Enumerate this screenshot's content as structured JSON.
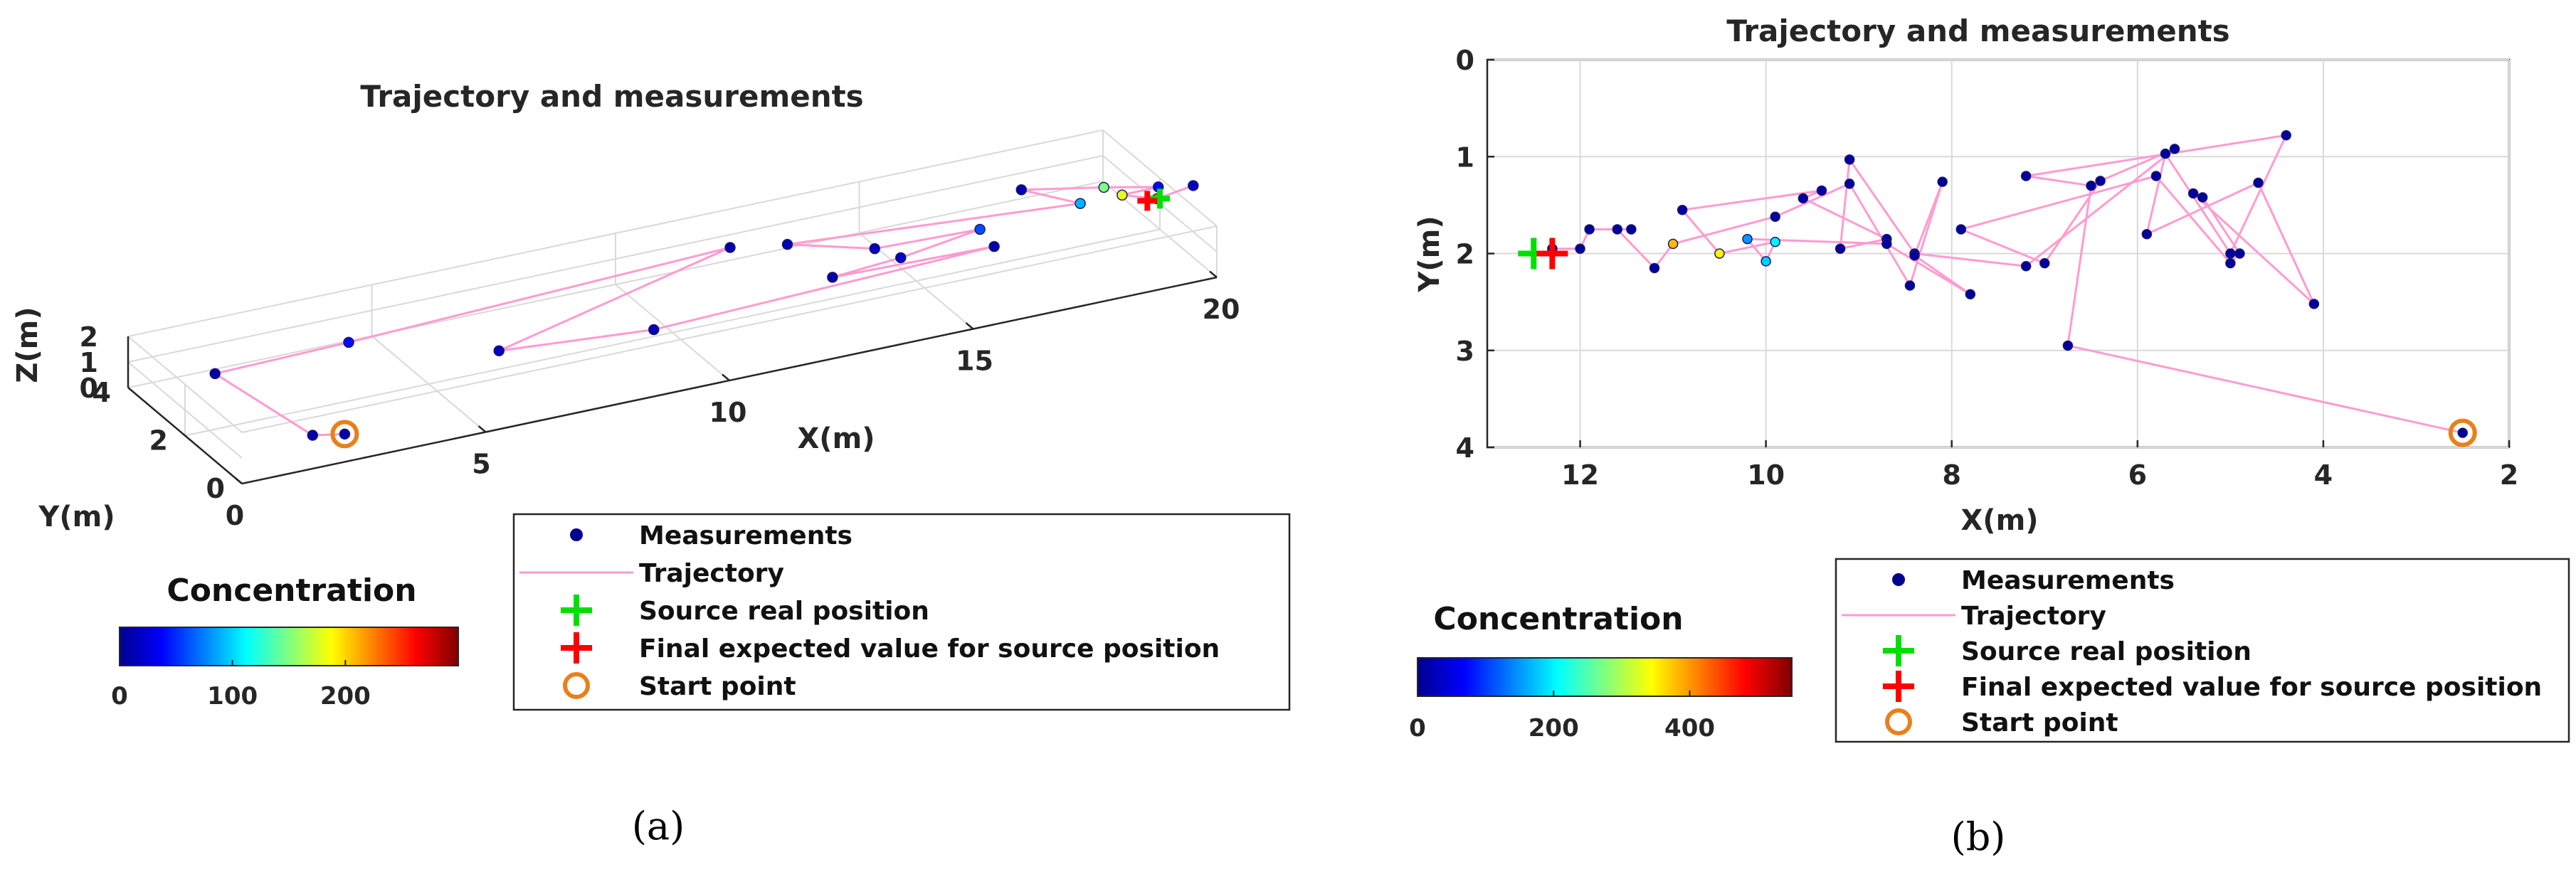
{
  "chart_data": [
    {
      "panel": "a",
      "caption": "(a)",
      "type": "scatter3d",
      "title": "Trajectory and measurements",
      "xlabel": "X(m)",
      "ylabel": "Y(m)",
      "zlabel": "Z(m)",
      "xlim": [
        0,
        20
      ],
      "ylim": [
        0,
        4
      ],
      "zlim": [
        0,
        2
      ],
      "xticks": [
        0,
        5,
        10,
        15,
        20
      ],
      "yticks": [
        0,
        2,
        4
      ],
      "zticks": [
        0,
        1,
        2
      ],
      "trajectory": [
        [
          2.4,
          0.5,
          0.5
        ],
        [
          1.8,
          0.6,
          0.6
        ],
        [
          1.2,
          3.0,
          1.0
        ],
        [
          4.0,
          3.1,
          1.0
        ],
        [
          12.0,
          3.4,
          1.2
        ],
        [
          6.5,
          2.1,
          0.6
        ],
        [
          9.5,
          1.8,
          0.5
        ],
        [
          16.6,
          2.0,
          0.7
        ],
        [
          13.4,
          2.2,
          0.6
        ],
        [
          14.8,
          2.2,
          0.8
        ],
        [
          16.6,
          2.5,
          0.9
        ],
        [
          14.5,
          2.6,
          0.9
        ],
        [
          13.0,
          3.1,
          1.2
        ],
        [
          18.6,
          2.4,
          1.2
        ],
        [
          17.8,
          3.1,
          1.4
        ],
        [
          19.2,
          2.6,
          1.4
        ],
        [
          20.2,
          2.4,
          1.2
        ],
        [
          19.4,
          2.3,
          1.3
        ],
        [
          20.0,
          2.1,
          1.1
        ],
        [
          20.8,
          2.2,
          1.2
        ]
      ],
      "measurements": [
        {
          "x": 2.4,
          "y": 0.5,
          "z": 0.5,
          "c": 10
        },
        {
          "x": 1.8,
          "y": 0.6,
          "z": 0.6,
          "c": 10
        },
        {
          "x": 1.2,
          "y": 3.0,
          "z": 1.0,
          "c": 10
        },
        {
          "x": 4.0,
          "y": 3.1,
          "z": 1.0,
          "c": 40
        },
        {
          "x": 12.0,
          "y": 3.4,
          "z": 1.2,
          "c": 10
        },
        {
          "x": 6.5,
          "y": 2.1,
          "z": 0.6,
          "c": 15
        },
        {
          "x": 9.5,
          "y": 1.8,
          "z": 0.5,
          "c": 12
        },
        {
          "x": 16.6,
          "y": 2.0,
          "z": 0.7,
          "c": 10
        },
        {
          "x": 13.4,
          "y": 2.2,
          "z": 0.6,
          "c": 10
        },
        {
          "x": 14.8,
          "y": 2.2,
          "z": 0.8,
          "c": 20
        },
        {
          "x": 16.6,
          "y": 2.5,
          "z": 0.9,
          "c": 60
        },
        {
          "x": 14.5,
          "y": 2.6,
          "z": 0.9,
          "c": 15
        },
        {
          "x": 13.0,
          "y": 3.1,
          "z": 1.2,
          "c": 12
        },
        {
          "x": 18.6,
          "y": 2.4,
          "z": 1.2,
          "c": 90
        },
        {
          "x": 17.8,
          "y": 3.1,
          "z": 1.4,
          "c": 10
        },
        {
          "x": 19.2,
          "y": 2.6,
          "z": 1.4,
          "c": 150
        },
        {
          "x": 20.2,
          "y": 2.4,
          "z": 1.2,
          "c": 40
        },
        {
          "x": 19.4,
          "y": 2.3,
          "z": 1.3,
          "c": 180
        },
        {
          "x": 20.0,
          "y": 2.1,
          "z": 1.1,
          "c": 230
        },
        {
          "x": 20.8,
          "y": 2.2,
          "z": 1.2,
          "c": 20
        }
      ],
      "source_real_position": [
        20.0,
        2.0,
        1.2
      ],
      "final_expected_source_position": [
        19.8,
        2.1,
        1.1
      ],
      "start_point": [
        2.4,
        0.5,
        0.5
      ],
      "colorbar": {
        "title": "Concentration",
        "ticks": [
          0,
          100,
          200
        ],
        "range": [
          0,
          300
        ]
      },
      "legend": [
        {
          "key": "measurements",
          "label": "Measurements"
        },
        {
          "key": "trajectory",
          "label": "Trajectory"
        },
        {
          "key": "source",
          "label": "Source real position"
        },
        {
          "key": "expected",
          "label": "Final expected value for source position"
        },
        {
          "key": "start",
          "label": "Start point"
        }
      ]
    },
    {
      "panel": "b",
      "caption": "(b)",
      "type": "scatter",
      "title": "Trajectory and measurements",
      "xlabel": "X(m)",
      "ylabel": "Y(m)",
      "xlim": [
        2,
        13
      ],
      "ylim": [
        0,
        4
      ],
      "x_reversed": true,
      "y_reversed": true,
      "xticks": [
        12,
        10,
        8,
        6,
        4,
        2
      ],
      "yticks": [
        0,
        1,
        2,
        3,
        4
      ],
      "trajectory": [
        [
          2.5,
          3.85
        ],
        [
          6.75,
          2.95
        ],
        [
          6.5,
          1.3
        ],
        [
          7.2,
          1.2
        ],
        [
          4.4,
          0.78
        ],
        [
          5.0,
          2.0
        ],
        [
          5.7,
          0.97
        ],
        [
          5.9,
          1.8
        ],
        [
          4.7,
          1.27
        ],
        [
          4.1,
          2.52
        ],
        [
          5.4,
          1.38
        ],
        [
          5.3,
          1.42
        ],
        [
          4.9,
          2.0
        ],
        [
          5.0,
          2.1
        ],
        [
          5.8,
          1.2
        ],
        [
          7.9,
          1.75
        ],
        [
          7.0,
          2.1
        ],
        [
          6.4,
          1.25
        ],
        [
          5.6,
          0.92
        ],
        [
          7.2,
          2.13
        ],
        [
          8.4,
          2.0
        ],
        [
          9.1,
          1.03
        ],
        [
          9.2,
          1.95
        ],
        [
          8.7,
          1.85
        ],
        [
          9.6,
          1.43
        ],
        [
          9.4,
          1.35
        ],
        [
          10.9,
          1.55
        ],
        [
          10.5,
          2.0
        ],
        [
          9.9,
          1.88
        ],
        [
          10.0,
          2.08
        ],
        [
          10.2,
          1.85
        ],
        [
          8.7,
          1.9
        ],
        [
          7.8,
          2.42
        ],
        [
          8.4,
          2.02
        ],
        [
          8.1,
          1.26
        ],
        [
          8.45,
          2.33
        ],
        [
          9.1,
          1.28
        ],
        [
          9.9,
          1.62
        ],
        [
          11.0,
          1.9
        ],
        [
          11.2,
          2.15
        ],
        [
          11.6,
          1.75
        ],
        [
          11.45,
          1.75
        ],
        [
          11.9,
          1.75
        ],
        [
          12.0,
          1.95
        ],
        [
          12.3,
          1.95
        ]
      ],
      "measurements": [
        {
          "x": 2.5,
          "y": 3.85,
          "c": 10
        },
        {
          "x": 6.75,
          "y": 2.95,
          "c": 10
        },
        {
          "x": 6.5,
          "y": 1.3,
          "c": 10
        },
        {
          "x": 7.2,
          "y": 1.2,
          "c": 10
        },
        {
          "x": 4.4,
          "y": 0.78,
          "c": 10
        },
        {
          "x": 5.0,
          "y": 2.0,
          "c": 10
        },
        {
          "x": 5.7,
          "y": 0.97,
          "c": 10
        },
        {
          "x": 5.9,
          "y": 1.8,
          "c": 10
        },
        {
          "x": 4.7,
          "y": 1.27,
          "c": 10
        },
        {
          "x": 4.1,
          "y": 2.52,
          "c": 10
        },
        {
          "x": 5.4,
          "y": 1.38,
          "c": 10
        },
        {
          "x": 5.3,
          "y": 1.42,
          "c": 10
        },
        {
          "x": 4.9,
          "y": 2.0,
          "c": 10
        },
        {
          "x": 5.0,
          "y": 2.1,
          "c": 10
        },
        {
          "x": 5.8,
          "y": 1.2,
          "c": 10
        },
        {
          "x": 7.9,
          "y": 1.75,
          "c": 10
        },
        {
          "x": 7.0,
          "y": 2.1,
          "c": 10
        },
        {
          "x": 6.4,
          "y": 1.25,
          "c": 10
        },
        {
          "x": 5.6,
          "y": 0.92,
          "c": 10
        },
        {
          "x": 7.2,
          "y": 2.13,
          "c": 10
        },
        {
          "x": 8.4,
          "y": 2.0,
          "c": 10
        },
        {
          "x": 9.1,
          "y": 1.03,
          "c": 10
        },
        {
          "x": 9.2,
          "y": 1.95,
          "c": 10
        },
        {
          "x": 8.7,
          "y": 1.85,
          "c": 10
        },
        {
          "x": 9.6,
          "y": 1.43,
          "c": 10
        },
        {
          "x": 9.4,
          "y": 1.35,
          "c": 10
        },
        {
          "x": 10.9,
          "y": 1.55,
          "c": 10
        },
        {
          "x": 10.5,
          "y": 2.0,
          "c": 350
        },
        {
          "x": 9.9,
          "y": 1.88,
          "c": 200
        },
        {
          "x": 10.0,
          "y": 2.08,
          "c": 180
        },
        {
          "x": 10.2,
          "y": 1.85,
          "c": 150
        },
        {
          "x": 8.7,
          "y": 1.9,
          "c": 10
        },
        {
          "x": 7.8,
          "y": 2.42,
          "c": 10
        },
        {
          "x": 8.4,
          "y": 2.02,
          "c": 10
        },
        {
          "x": 8.1,
          "y": 1.26,
          "c": 10
        },
        {
          "x": 8.45,
          "y": 2.33,
          "c": 10
        },
        {
          "x": 9.1,
          "y": 1.28,
          "c": 10
        },
        {
          "x": 9.9,
          "y": 1.62,
          "c": 10
        },
        {
          "x": 11.0,
          "y": 1.9,
          "c": 380
        },
        {
          "x": 11.2,
          "y": 2.15,
          "c": 10
        },
        {
          "x": 11.6,
          "y": 1.75,
          "c": 10
        },
        {
          "x": 11.45,
          "y": 1.75,
          "c": 10
        },
        {
          "x": 11.9,
          "y": 1.75,
          "c": 10
        },
        {
          "x": 12.0,
          "y": 1.95,
          "c": 10
        },
        {
          "x": 12.3,
          "y": 1.95,
          "c": 10
        }
      ],
      "source_real_position": [
        12.5,
        2.0
      ],
      "final_expected_source_position": [
        12.3,
        2.0
      ],
      "start_point": [
        2.5,
        3.85
      ],
      "colorbar": {
        "title": "Concentration",
        "ticks": [
          0,
          200,
          400
        ],
        "range": [
          0,
          550
        ]
      },
      "legend": [
        {
          "key": "measurements",
          "label": "Measurements"
        },
        {
          "key": "trajectory",
          "label": "Trajectory"
        },
        {
          "key": "source",
          "label": "Source real position"
        },
        {
          "key": "expected",
          "label": "Final expected value for source position"
        },
        {
          "key": "start",
          "label": "Start point"
        }
      ]
    }
  ],
  "colors": {
    "trajectory": "#ff9bd0",
    "source": "#00e000",
    "expected": "#ff0000",
    "start": "#e8801c",
    "jet": [
      "#00008f",
      "#0000ff",
      "#0080ff",
      "#00ffff",
      "#80ff80",
      "#ffff00",
      "#ff8000",
      "#ff0000",
      "#800000"
    ]
  }
}
